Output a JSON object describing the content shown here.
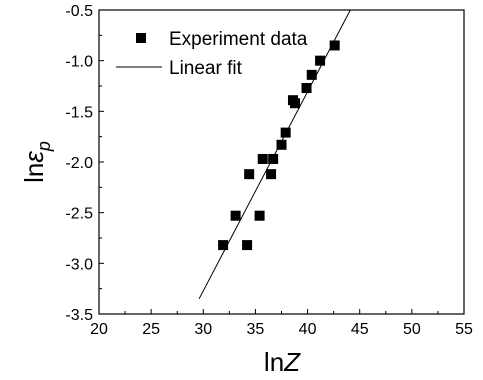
{
  "chart_data": {
    "type": "scatter",
    "xlabel_base": "ln",
    "xlabel_var": "Z",
    "ylabel_base": "ln",
    "ylabel_var": "ε",
    "ylabel_sub": "p",
    "xlim": [
      20,
      55
    ],
    "ylim": [
      -3.5,
      -0.5
    ],
    "x_ticks": [
      "20",
      "25",
      "30",
      "35",
      "40",
      "45",
      "50",
      "55"
    ],
    "y_ticks": [
      "-3.5",
      "-3.0",
      "-2.5",
      "-2.0",
      "-1.5",
      "-1.0",
      "-0.5"
    ],
    "grid": false,
    "legend_position": "top-left",
    "series": [
      {
        "name": "Experiment data",
        "kind": "scatter",
        "marker": "square",
        "color": "#000000",
        "x": [
          31.9,
          33.1,
          34.2,
          34.4,
          35.4,
          35.7,
          36.5,
          36.7,
          37.5,
          37.9,
          38.6,
          38.8,
          39.9,
          40.4,
          41.2,
          42.6
        ],
        "y": [
          -2.82,
          -2.53,
          -2.82,
          -2.12,
          -2.53,
          -1.97,
          -2.12,
          -1.97,
          -1.83,
          -1.71,
          -1.39,
          -1.42,
          -1.27,
          -1.14,
          -1.0,
          -0.85
        ]
      },
      {
        "name": "Linear fit",
        "kind": "line",
        "color": "#000000",
        "x": [
          29.6,
          44.1
        ],
        "y": [
          -3.35,
          -0.5
        ]
      }
    ]
  }
}
